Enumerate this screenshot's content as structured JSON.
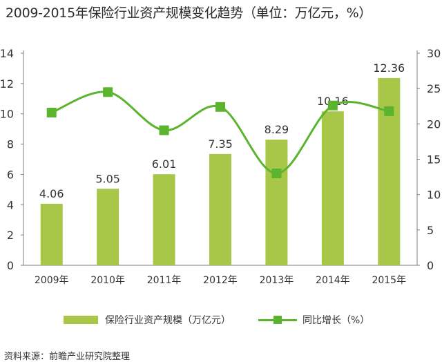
{
  "title": "2009-2015年保险行业资产规模变化趋势（单位：万亿元，%）",
  "source": "资料来源：前瞻产业研究院整理",
  "colors": {
    "bar": "#a8c648",
    "line": "#5cb42e",
    "axis": "#7f7f7f",
    "text": "#333333"
  },
  "legend": {
    "bar_label": "保险行业资产规模（万亿元）",
    "line_label": "同比增长（%）"
  },
  "chart_data": {
    "type": "bar",
    "categories": [
      "2009年",
      "2010年",
      "2011年",
      "2012年",
      "2013年",
      "2014年",
      "2015年"
    ],
    "series": [
      {
        "name": "保险行业资产规模（万亿元）",
        "type": "bar",
        "axis": "left",
        "values": [
          4.06,
          5.05,
          6.01,
          7.35,
          8.29,
          10.16,
          12.36
        ],
        "labels": [
          "4.06",
          "5.05",
          "6.01",
          "7.35",
          "8.29",
          "10.16",
          "12.36"
        ]
      },
      {
        "name": "同比增长（%）",
        "type": "line",
        "axis": "right",
        "smooth": true,
        "values": [
          21.6,
          24.5,
          19.1,
          22.4,
          13.0,
          22.6,
          21.8
        ]
      }
    ],
    "ylim_left": [
      0,
      14
    ],
    "yticks_left": [
      "0",
      "2",
      "4",
      "6",
      "8",
      "10",
      "12",
      "14"
    ],
    "ylim_right": [
      0,
      30
    ],
    "yticks_right": [
      "0",
      "5",
      "10",
      "15",
      "20",
      "25",
      "30"
    ],
    "grid": false,
    "legend_position": "bottom"
  }
}
